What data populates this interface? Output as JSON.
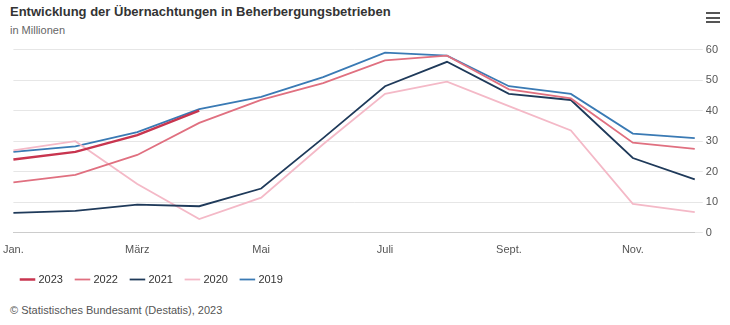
{
  "chart_data": {
    "type": "line",
    "title": "Entwicklung der Übernachtungen in Beherbergungsbetrieben",
    "subtitle": "in Millionen",
    "source": "© Statistisches Bundesamt (Destatis), 2023",
    "categories": [
      "Jan.",
      null,
      "März",
      null,
      "Mai",
      null,
      "Juli",
      null,
      "Sept.",
      null,
      "Nov.",
      null
    ],
    "series": [
      {
        "name": "2023",
        "color": "#c8354f",
        "values": [
          24,
          26.5,
          32,
          40,
          null,
          null,
          null,
          null,
          null,
          null,
          null,
          null
        ]
      },
      {
        "name": "2022",
        "color": "#e07080",
        "values": [
          16.5,
          19,
          25.5,
          36,
          43.5,
          49,
          56.5,
          58,
          47,
          44,
          29.5,
          27.5
        ]
      },
      {
        "name": "2021",
        "color": "#1f3a5a",
        "values": [
          6.5,
          7.2,
          9.2,
          8.7,
          14.5,
          31,
          48,
          56,
          45.5,
          43.5,
          24.5,
          17.5
        ]
      },
      {
        "name": "2020",
        "color": "#f4b9c7",
        "values": [
          27,
          30,
          16,
          4.5,
          11.5,
          29,
          45.5,
          49.5,
          41.5,
          33.5,
          9.5,
          6.8
        ]
      },
      {
        "name": "2019",
        "color": "#3a7ab4",
        "values": [
          26.5,
          28.3,
          33,
          40.5,
          44.5,
          51,
          59,
          58,
          48,
          45.5,
          32.5,
          31
        ]
      }
    ],
    "ylim": [
      0,
      60
    ],
    "yticks": [
      0,
      10,
      20,
      30,
      40,
      50,
      60
    ],
    "grid": true,
    "legend": "bottom",
    "marker": "none",
    "line_style": "solid"
  }
}
